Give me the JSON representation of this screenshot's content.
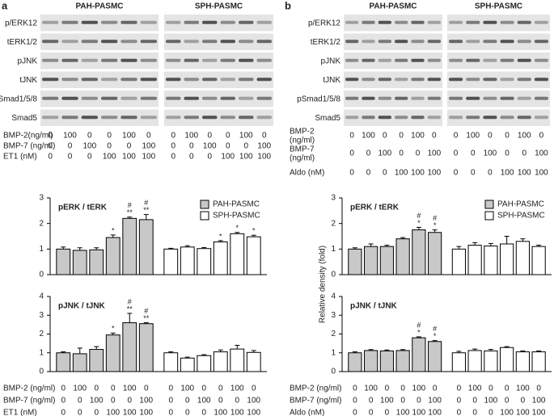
{
  "panels": [
    {
      "label": "a",
      "groups": [
        "PAH-PASMC",
        "SPH-PASMC"
      ],
      "blots": [
        "p/ERK12",
        "tERK1/2",
        "pJNK",
        "tJNK",
        "pSmad1/5/8",
        "Smad5"
      ],
      "top_rows": [
        {
          "label": [
            "BMP-2(ng/ml)"
          ],
          "values": [
            0,
            100,
            0,
            0,
            100,
            0,
            0,
            100,
            0,
            0,
            100,
            0
          ]
        },
        {
          "label": [
            "BMP-7 (ng/ml)"
          ],
          "values": [
            0,
            0,
            100,
            0,
            0,
            100,
            0,
            0,
            100,
            0,
            0,
            100
          ]
        },
        {
          "label": [
            "ET1 (nM)"
          ],
          "values": [
            0,
            0,
            0,
            100,
            100,
            100,
            0,
            0,
            0,
            100,
            100,
            100
          ]
        }
      ],
      "bottom_rows": [
        {
          "label": "BMP-2 (ng/ml)",
          "values": [
            0,
            100,
            0,
            0,
            100,
            0,
            0,
            100,
            0,
            0,
            100,
            0
          ]
        },
        {
          "label": "BMP-7 (ng/ml)",
          "values": [
            0,
            0,
            100,
            0,
            0,
            100,
            0,
            0,
            100,
            0,
            0,
            100
          ]
        },
        {
          "label": "ET1 (nM)",
          "values": [
            0,
            0,
            0,
            100,
            100,
            100,
            0,
            0,
            0,
            100,
            100,
            100
          ]
        }
      ]
    },
    {
      "label": "b",
      "groups": [
        "PAH-PASMC",
        "SPH-PASMC"
      ],
      "blots": [
        "p/ERK12",
        "tERK1/2",
        "pJNK",
        "tJNK",
        "pSmad1/5/8",
        "Smad5"
      ],
      "top_rows": [
        {
          "label": [
            "BMP-2",
            "(ng/ml)"
          ],
          "values": [
            0,
            100,
            0,
            0,
            100,
            0,
            0,
            100,
            0,
            0,
            100,
            0
          ]
        },
        {
          "label": [
            "BMP-7",
            "(ng/ml)"
          ],
          "values": [
            0,
            0,
            100,
            0,
            0,
            100,
            0,
            0,
            100,
            0,
            0,
            100
          ]
        },
        {
          "label": [
            "Aldo (nM)"
          ],
          "values": [
            0,
            0,
            0,
            100,
            100,
            100,
            0,
            0,
            0,
            100,
            100,
            100
          ]
        }
      ],
      "ylabel": "Relative density (fold)",
      "bottom_rows": [
        {
          "label": "BMP-2 (ng/ml)",
          "values": [
            0,
            100,
            0,
            0,
            100,
            0,
            0,
            100,
            0,
            0,
            100,
            0
          ]
        },
        {
          "label": "BMP-7 (ng/ml)",
          "values": [
            0,
            0,
            100,
            0,
            0,
            100,
            0,
            0,
            100,
            0,
            0,
            100
          ]
        },
        {
          "label": "Aldo (nM)",
          "values": [
            0,
            0,
            0,
            100,
            100,
            100,
            0,
            0,
            0,
            100,
            100,
            100
          ]
        }
      ]
    }
  ],
  "chart_data": [
    {
      "type": "bar",
      "title": "pERK / tERK",
      "ylim": [
        0,
        3
      ],
      "yticks": [
        0,
        1,
        2,
        3
      ],
      "legend": "top-right",
      "series": [
        {
          "name": "PAH-PASMC",
          "color": "#c8c8c8",
          "values": [
            1.0,
            0.95,
            0.97,
            1.45,
            2.2,
            2.15
          ],
          "errors": [
            0.08,
            0.1,
            0.08,
            0.1,
            0.05,
            0.2
          ],
          "stars": [
            null,
            null,
            null,
            "*",
            "**",
            "**"
          ],
          "hash": [
            null,
            null,
            null,
            null,
            "#",
            "#"
          ]
        },
        {
          "name": "SPH-PASMC",
          "color": "#ffffff",
          "values": [
            1.0,
            1.08,
            1.02,
            1.28,
            1.6,
            1.48
          ],
          "errors": [
            0.03,
            0.05,
            0.04,
            0.05,
            0.05,
            0.06
          ],
          "stars": [
            null,
            null,
            null,
            "*",
            "*",
            "*"
          ]
        }
      ]
    },
    {
      "type": "bar",
      "title": "pJNK / tJNK",
      "ylim": [
        0,
        4
      ],
      "yticks": [
        0,
        1,
        2,
        3,
        4
      ],
      "series": [
        {
          "color": "#c8c8c8",
          "values": [
            1.0,
            0.95,
            1.18,
            1.95,
            2.6,
            2.55
          ],
          "errors": [
            0.05,
            0.3,
            0.15,
            0.1,
            0.5,
            0.05
          ],
          "stars": [
            null,
            null,
            null,
            "*",
            "**",
            "**"
          ],
          "hash": [
            null,
            null,
            null,
            null,
            "#",
            "#"
          ]
        },
        {
          "color": "#ffffff",
          "values": [
            1.0,
            0.72,
            0.85,
            1.05,
            1.2,
            1.02
          ],
          "errors": [
            0.05,
            0.05,
            0.05,
            0.1,
            0.2,
            0.1
          ]
        }
      ]
    },
    {
      "type": "bar",
      "title": "pERK / tERK",
      "ylim": [
        0,
        3
      ],
      "yticks": [
        0,
        1,
        2,
        3
      ],
      "legend": "top-right",
      "series": [
        {
          "name": "PAH-PASMC",
          "color": "#c8c8c8",
          "values": [
            1.0,
            1.1,
            1.1,
            1.4,
            1.75,
            1.65
          ],
          "errors": [
            0.05,
            0.1,
            0.05,
            0.05,
            0.1,
            0.1
          ],
          "stars": [
            null,
            null,
            null,
            null,
            "*",
            "*"
          ],
          "hash": [
            null,
            null,
            null,
            null,
            "#",
            "#"
          ]
        },
        {
          "name": "SPH-PASMC",
          "color": "#ffffff",
          "values": [
            1.0,
            1.15,
            1.12,
            1.2,
            1.3,
            1.1
          ],
          "errors": [
            0.1,
            0.1,
            0.1,
            0.3,
            0.1,
            0.05
          ]
        }
      ]
    },
    {
      "type": "bar",
      "title": "pJNK / tJNK",
      "ylim": [
        0,
        4
      ],
      "yticks": [
        0,
        1,
        2,
        3,
        4
      ],
      "series": [
        {
          "color": "#c8c8c8",
          "values": [
            1.0,
            1.12,
            1.1,
            1.12,
            1.8,
            1.6
          ],
          "errors": [
            0.05,
            0.05,
            0.05,
            0.05,
            0.05,
            0.05
          ],
          "stars": [
            null,
            null,
            null,
            null,
            "*",
            "*"
          ],
          "hash": [
            null,
            null,
            null,
            null,
            "#",
            "#"
          ]
        },
        {
          "color": "#ffffff",
          "values": [
            1.0,
            1.12,
            1.1,
            1.28,
            1.05,
            1.05
          ],
          "errors": [
            0.08,
            0.08,
            0.08,
            0.05,
            0.05,
            0.05
          ]
        }
      ]
    }
  ]
}
